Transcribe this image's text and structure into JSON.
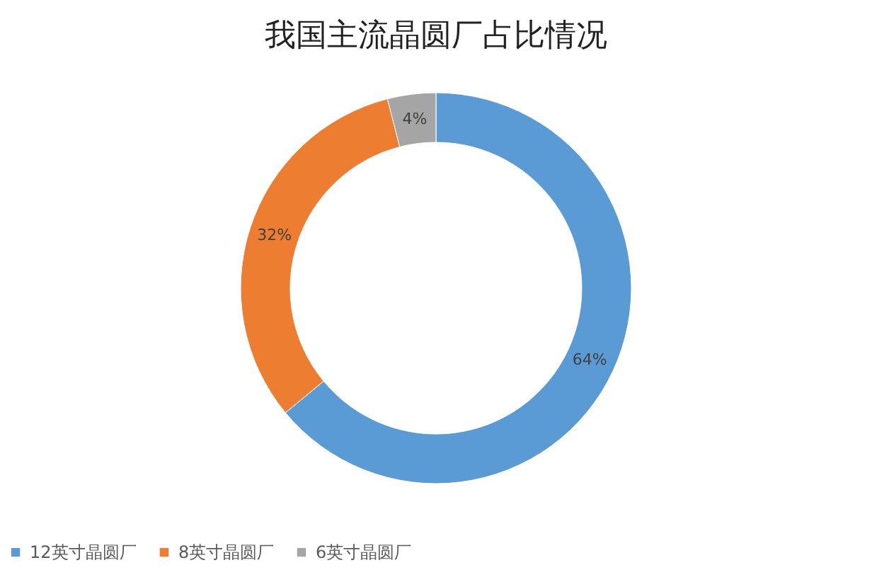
{
  "chart_data": {
    "type": "donut",
    "title": "我国主流晶圆厂占比情况",
    "categories": [
      "12英寸晶圆厂",
      "8英寸晶圆厂",
      "6英寸晶圆厂"
    ],
    "values": [
      64,
      32,
      4
    ],
    "colors": [
      "#5b9bd5",
      "#ed7d31",
      "#a5a5a5"
    ],
    "value_labels": [
      "64%",
      "32%",
      "4%"
    ],
    "legend": "bottom"
  }
}
